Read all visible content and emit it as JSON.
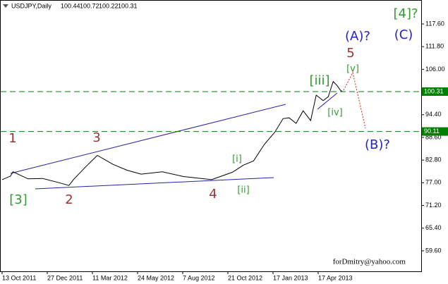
{
  "chart_data": {
    "type": "line",
    "title": "USDJPY,Daily",
    "ohlc": [
      100.44,
      100.72,
      100.22,
      100.31
    ],
    "x": [
      "2011-10-13",
      "2011-10-27",
      "2011-10-31",
      "2011-11-25",
      "2011-12-19",
      "2012-01-11",
      "2012-02-01",
      "2012-02-09",
      "2012-02-27",
      "2012-03-19",
      "2012-04-14",
      "2012-05-07",
      "2012-05-30",
      "2012-07-04",
      "2012-08-08",
      "2012-09-24",
      "2012-10-30",
      "2012-11-20",
      "2012-12-10",
      "2012-12-31",
      "2013-01-21",
      "2013-02-06",
      "2013-02-18",
      "2013-03-04",
      "2013-03-18",
      "2013-04-02",
      "2013-04-13",
      "2013-04-27",
      "2013-05-07",
      "2013-05-17",
      "2013-05-25",
      "2013-05-31",
      "2013-06-04"
    ],
    "series": [
      {
        "color": "#000000",
        "values": [
          77.8,
          78.7,
          79.8,
          78.0,
          78.1,
          77.2,
          76.3,
          77.9,
          80.8,
          84.0,
          81.7,
          80.2,
          79.2,
          79.8,
          78.6,
          77.8,
          79.7,
          81.5,
          82.6,
          86.8,
          90.0,
          93.4,
          93.6,
          92.2,
          95.4,
          92.9,
          99.4,
          98.0,
          99.0,
          102.9,
          101.8,
          100.7,
          100.31
        ]
      }
    ],
    "xticks": [
      {
        "value": "2011-10-13",
        "label": "13 Oct 2011"
      },
      {
        "value": "2011-12-27",
        "label": "27 Dec 2011"
      },
      {
        "value": "2012-03-11",
        "label": "11 Mar 2012"
      },
      {
        "value": "2012-05-24",
        "label": "24 May 2012"
      },
      {
        "value": "2012-08-07",
        "label": "7 Aug 2012"
      },
      {
        "value": "2012-10-21",
        "label": "21 Oct 2012"
      },
      {
        "value": "2013-01-17",
        "label": "17 Jan 2013"
      },
      {
        "value": "2013-04-17",
        "label": "17 Apr 2013"
      }
    ],
    "ylim": [
      54.36,
      123.73
    ],
    "yticks": [
      {
        "value": 117.6,
        "label": "117.60"
      },
      {
        "value": 111.8,
        "label": "111.80"
      },
      {
        "value": 106,
        "label": "106.00"
      },
      {
        "value": 94.4,
        "label": "94.40"
      },
      {
        "value": 88.6,
        "label": "88.60"
      },
      {
        "value": 82.8,
        "label": "82.80"
      },
      {
        "value": 77,
        "label": "77.00"
      },
      {
        "value": 71.2,
        "label": "71.20"
      },
      {
        "value": 65.4,
        "label": "65.40"
      },
      {
        "value": 59.6,
        "label": "59.60"
      }
    ],
    "grid": false,
    "levels": [
      {
        "value": 100.31,
        "color": "#008000"
      },
      {
        "value": 90.11,
        "color": "#008000"
      }
    ],
    "annotations": [
      {
        "text": "1",
        "color": "#993333"
      },
      {
        "text": "[3]",
        "color": "#339933"
      },
      {
        "text": "2",
        "color": "#993333"
      },
      {
        "text": "3",
        "color": "#993333"
      },
      {
        "text": "4",
        "color": "#993333"
      },
      {
        "text": "[i]",
        "color": "#339933"
      },
      {
        "text": "[ii]",
        "color": "#339933"
      },
      {
        "text": "[iii]",
        "color": "#339933"
      },
      {
        "text": "[iv]",
        "color": "#339933"
      },
      {
        "text": "[v]",
        "color": "#339933"
      },
      {
        "text": "5",
        "color": "#993333"
      },
      {
        "text": "(A)?",
        "color": "#2222cc"
      },
      {
        "text": "(B)?",
        "color": "#2222cc"
      },
      {
        "text": "[4]?",
        "color": "#339933"
      },
      {
        "text": "(C)",
        "color": "#2222cc"
      }
    ],
    "watermark": "forDmitry@yahoo.com"
  }
}
